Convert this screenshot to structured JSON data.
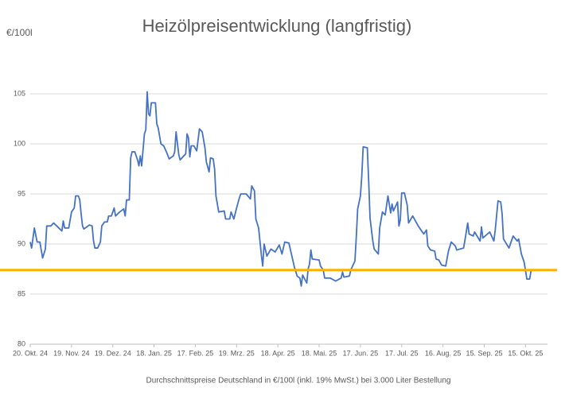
{
  "chart_data": {
    "type": "line",
    "title": "Heizölpreisentwicklung (langfristig)",
    "y_label": "€/100l",
    "x_label": "Durchschnittspreise Deutschland in €/100l (inkl. 19% MwSt.) bei 3.000 Liter Bestellung",
    "color": "#4472c4",
    "grid": true,
    "ylim": [
      80,
      107
    ],
    "yticks": [
      80,
      85,
      90,
      95,
      100,
      105
    ],
    "xlim": [
      "2024-10-20",
      "2025-10-31"
    ],
    "xticks": [
      {
        "value": "2024-10-20",
        "label": "20. Okt. 24"
      },
      {
        "value": "2024-11-19",
        "label": "19. Nov. 24"
      },
      {
        "value": "2024-12-19",
        "label": "19. Dez. 24"
      },
      {
        "value": "2025-01-18",
        "label": "18. Jan. 25"
      },
      {
        "value": "2025-02-17",
        "label": "17. Feb. 25"
      },
      {
        "value": "2025-03-19",
        "label": "19. Mrz. 25"
      },
      {
        "value": "2025-04-18",
        "label": "18. Apr. 25"
      },
      {
        "value": "2025-05-18",
        "label": "18. Mai. 25"
      },
      {
        "value": "2025-06-17",
        "label": "17. Jun. 25"
      },
      {
        "value": "2025-07-17",
        "label": "17. Jul. 25"
      },
      {
        "value": "2025-08-16",
        "label": "16. Aug. 25"
      },
      {
        "value": "2025-09-15",
        "label": "15. Sep. 25"
      },
      {
        "value": "2025-10-15",
        "label": "15. Okt. 25"
      }
    ],
    "reference_line": {
      "value": 87.4,
      "color": "#ffb000"
    },
    "x": [
      "2024-10-20",
      "2024-10-21",
      "2024-10-23",
      "2024-10-25",
      "2024-10-27",
      "2024-10-29",
      "2024-10-31",
      "2024-11-01",
      "2024-11-04",
      "2024-11-06",
      "2024-11-09",
      "2024-11-12",
      "2024-11-13",
      "2024-11-14",
      "2024-11-17",
      "2024-11-19",
      "2024-11-21",
      "2024-11-22",
      "2024-11-24",
      "2024-11-25",
      "2024-11-26",
      "2024-11-27",
      "2024-11-28",
      "2024-12-02",
      "2024-12-04",
      "2024-12-05",
      "2024-12-06",
      "2024-12-08",
      "2024-12-10",
      "2024-12-11",
      "2024-12-13",
      "2024-12-15",
      "2024-12-16",
      "2024-12-18",
      "2024-12-20",
      "2024-12-21",
      "2024-12-24",
      "2024-12-27",
      "2024-12-28",
      "2024-12-29",
      "2024-12-31",
      "2025-01-01",
      "2025-01-02",
      "2025-01-04",
      "2025-01-06",
      "2025-01-07",
      "2025-01-08",
      "2025-01-09",
      "2025-01-11",
      "2025-01-12",
      "2025-01-13",
      "2025-01-14",
      "2025-01-15",
      "2025-01-16",
      "2025-01-19",
      "2025-01-20",
      "2025-01-21",
      "2025-01-23",
      "2025-01-25",
      "2025-01-27",
      "2025-01-29",
      "2025-02-01",
      "2025-02-02",
      "2025-02-03",
      "2025-02-05",
      "2025-02-06",
      "2025-02-10",
      "2025-02-11",
      "2025-02-12",
      "2025-02-13",
      "2025-02-14",
      "2025-02-16",
      "2025-02-18",
      "2025-02-20",
      "2025-02-22",
      "2025-02-24",
      "2025-02-25",
      "2025-02-27",
      "2025-02-28",
      "2025-03-02",
      "2025-03-03",
      "2025-03-04",
      "2025-03-06",
      "2025-03-10",
      "2025-03-11",
      "2025-03-14",
      "2025-03-15",
      "2025-03-17",
      "2025-03-19",
      "2025-03-21",
      "2025-03-22",
      "2025-03-26",
      "2025-03-29",
      "2025-03-30",
      "2025-04-01",
      "2025-04-02",
      "2025-04-04",
      "2025-04-06",
      "2025-04-07",
      "2025-04-08",
      "2025-04-10",
      "2025-04-13",
      "2025-04-16",
      "2025-04-19",
      "2025-04-21",
      "2025-04-23",
      "2025-04-26",
      "2025-04-28",
      "2025-04-30",
      "2025-05-02",
      "2025-05-04",
      "2025-05-05",
      "2025-05-06",
      "2025-05-09",
      "2025-05-10",
      "2025-05-11",
      "2025-05-12",
      "2025-05-13",
      "2025-05-18",
      "2025-05-19",
      "2025-05-21",
      "2025-05-22",
      "2025-05-26",
      "2025-05-30",
      "2025-06-03",
      "2025-06-04",
      "2025-06-05",
      "2025-06-09",
      "2025-06-10",
      "2025-06-13",
      "2025-06-14",
      "2025-06-15",
      "2025-06-17",
      "2025-06-18",
      "2025-06-19",
      "2025-06-22",
      "2025-06-23",
      "2025-06-24",
      "2025-06-26",
      "2025-06-27",
      "2025-06-30",
      "2025-07-01",
      "2025-07-03",
      "2025-07-05",
      "2025-07-07",
      "2025-07-09",
      "2025-07-10",
      "2025-07-11",
      "2025-07-14",
      "2025-07-15",
      "2025-07-16",
      "2025-07-17",
      "2025-07-19",
      "2025-07-21",
      "2025-07-22",
      "2025-07-25",
      "2025-07-29",
      "2025-08-02",
      "2025-08-04",
      "2025-08-05",
      "2025-08-07",
      "2025-08-10",
      "2025-08-11",
      "2025-08-13",
      "2025-08-15",
      "2025-08-18",
      "2025-08-20",
      "2025-08-22",
      "2025-08-25",
      "2025-08-26",
      "2025-08-31",
      "2025-09-01",
      "2025-09-03",
      "2025-09-04",
      "2025-09-07",
      "2025-09-08",
      "2025-09-12",
      "2025-09-13",
      "2025-09-14",
      "2025-09-19",
      "2025-09-22",
      "2025-09-23",
      "2025-09-25",
      "2025-09-27",
      "2025-09-28",
      "2025-09-29",
      "2025-10-03",
      "2025-10-06",
      "2025-10-09",
      "2025-10-10",
      "2025-10-12",
      "2025-10-14",
      "2025-10-16",
      "2025-10-18",
      "2025-10-19"
    ],
    "values": [
      90.2,
      89.6,
      91.6,
      90.2,
      90.2,
      88.6,
      89.5,
      91.8,
      91.8,
      92.1,
      91.7,
      91.3,
      92.3,
      91.6,
      91.6,
      93.2,
      93.6,
      94.8,
      94.8,
      94.4,
      93,
      91.8,
      91.5,
      91.9,
      91.8,
      90.3,
      89.6,
      89.6,
      90.2,
      91.8,
      92.2,
      92.2,
      92.8,
      92.8,
      93.6,
      92.8,
      93.2,
      93.5,
      92.8,
      94.4,
      94.4,
      98.6,
      99.2,
      99.2,
      98.4,
      97.8,
      98.8,
      97.8,
      101,
      101.4,
      105.2,
      103,
      102.8,
      104.1,
      104.1,
      102,
      101.6,
      100,
      99.8,
      99.2,
      98.5,
      98.8,
      99.2,
      101.2,
      98.9,
      98.4,
      99,
      101,
      100.6,
      98.7,
      99.8,
      99.8,
      99.3,
      101.5,
      101.2,
      99.6,
      98.2,
      97.2,
      98.6,
      98.5,
      97.5,
      94.8,
      93.2,
      93.3,
      92.5,
      92.5,
      93.2,
      92.5,
      93.6,
      94.6,
      95,
      95,
      94.5,
      95.8,
      95.3,
      92.5,
      91.6,
      88.9,
      87.8,
      90,
      88.8,
      89.5,
      89.2,
      89.9,
      89,
      90.2,
      90.1,
      88.9,
      87.7,
      86.8,
      86.6,
      85.8,
      86.9,
      86.1,
      87.5,
      88,
      89.4,
      88.5,
      88.4,
      87.8,
      87.4,
      86.6,
      86.6,
      86.3,
      86.6,
      87.2,
      86.7,
      86.8,
      87.4,
      88.3,
      90.7,
      93.5,
      94.8,
      96.8,
      99.7,
      99.6,
      96.3,
      92.6,
      90.3,
      89.5,
      89,
      91.6,
      93.2,
      92.9,
      94.8,
      93.1,
      94,
      93.3,
      94.2,
      91.8,
      92.4,
      95.1,
      95.1,
      93.9,
      92.1,
      92.8,
      91.8,
      91,
      91.4,
      89.8,
      89.4,
      89.3,
      88.5,
      88.4,
      87.9,
      87.8,
      89.3,
      90.2,
      89.8,
      89.4,
      89.6,
      90.4,
      92.1,
      91,
      90.8,
      91.2,
      90.3,
      91.7,
      90.6,
      91.2,
      90.3,
      91.4,
      94.3,
      94.2,
      93,
      90.5,
      89.6,
      90.8,
      90.3,
      90.5,
      89,
      88.2,
      86.5,
      86.5,
      87.3
    ]
  }
}
